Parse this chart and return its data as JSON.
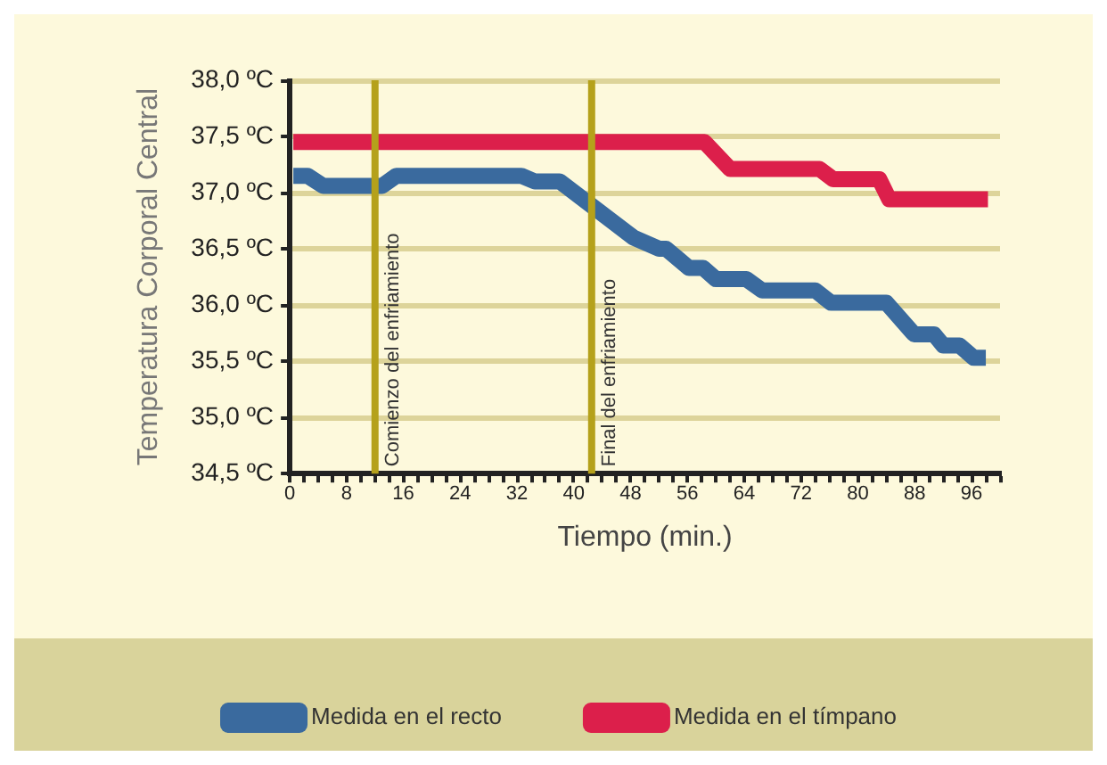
{
  "chart_data": {
    "type": "line",
    "xlabel": "Tiempo (min.)",
    "ylabel": "Temperatura Corporal Central",
    "xlim": [
      0,
      100
    ],
    "ylim": [
      34.5,
      38.0
    ],
    "xticks": [
      0,
      {
        "value": 2,
        "label": null
      },
      {
        "value": 4,
        "label": null
      },
      {
        "value": 6,
        "label": null
      },
      8,
      {
        "value": 10,
        "label": null
      },
      {
        "value": 12,
        "label": null
      },
      {
        "value": 14,
        "label": null
      },
      16,
      {
        "value": 18,
        "label": null
      },
      {
        "value": 20,
        "label": null
      },
      {
        "value": 22,
        "label": null
      },
      24,
      {
        "value": 26,
        "label": null
      },
      {
        "value": 28,
        "label": null
      },
      {
        "value": 30,
        "label": null
      },
      32,
      {
        "value": 34,
        "label": null
      },
      {
        "value": 36,
        "label": null
      },
      {
        "value": 38,
        "label": null
      },
      40,
      {
        "value": 42,
        "label": null
      },
      {
        "value": 44,
        "label": null
      },
      {
        "value": 46,
        "label": null
      },
      48,
      {
        "value": 50,
        "label": null
      },
      {
        "value": 52,
        "label": null
      },
      {
        "value": 54,
        "label": null
      },
      56,
      {
        "value": 58,
        "label": null
      },
      {
        "value": 60,
        "label": null
      },
      {
        "value": 62,
        "label": null
      },
      64,
      {
        "value": 66,
        "label": null
      },
      {
        "value": 68,
        "label": null
      },
      {
        "value": 70,
        "label": null
      },
      72,
      {
        "value": 74,
        "label": null
      },
      {
        "value": 76,
        "label": null
      },
      {
        "value": 78,
        "label": null
      },
      80,
      {
        "value": 82,
        "label": null
      },
      {
        "value": 84,
        "label": null
      },
      {
        "value": 86,
        "label": null
      },
      88,
      {
        "value": 90,
        "label": null
      },
      {
        "value": 92,
        "label": null
      },
      {
        "value": 94,
        "label": null
      },
      96,
      {
        "value": 98,
        "label": null
      },
      {
        "value": 100,
        "label": null
      }
    ],
    "yticks": [
      {
        "value": 34.5,
        "label": "34,5 ºC"
      },
      {
        "value": 35.0,
        "label": "35,0 ºC"
      },
      {
        "value": 35.5,
        "label": "35,5 ºC"
      },
      {
        "value": 36.0,
        "label": "36,0 ºC"
      },
      {
        "value": 36.5,
        "label": "36,5 ºC"
      },
      {
        "value": 37.0,
        "label": "37,0 ºC"
      },
      {
        "value": 37.5,
        "label": "37,5 ºC"
      },
      {
        "value": 38.0,
        "label": "38,0 ºC"
      }
    ],
    "grid": "y",
    "legend": "bottom",
    "marker": "none",
    "line_style": "solid",
    "series": [
      {
        "name": "Medida en el recto",
        "color": "#3a6a9e",
        "x": [
          0.5,
          2.5,
          4.7,
          13,
          15,
          32.6,
          34.5,
          38,
          48.4,
          52,
          53,
          56.2,
          58.2,
          60,
          64.3,
          66.5,
          74,
          76.2,
          84,
          87.9,
          90.7,
          92,
          94.3,
          96.3,
          98
        ],
        "values": [
          37.15,
          37.15,
          37.06,
          37.06,
          37.15,
          37.15,
          37.1,
          37.1,
          36.6,
          36.5,
          36.5,
          36.33,
          36.33,
          36.23,
          36.23,
          36.13,
          36.13,
          36.02,
          36.02,
          35.74,
          35.74,
          35.64,
          35.64,
          35.53,
          35.53
        ]
      },
      {
        "name": "Medida en el tímpano",
        "color": "#dc1f4b",
        "x": [
          0.5,
          58.4,
          62,
          74.6,
          76.5,
          83,
          84.4,
          98.3
        ],
        "values": [
          37.45,
          37.45,
          37.21,
          37.21,
          37.12,
          37.12,
          36.94,
          36.94
        ]
      }
    ],
    "ref_lines": [
      {
        "axis": "x",
        "value": 12,
        "label": "Comienzo del enfriamiento",
        "color": "#b5a11b"
      },
      {
        "axis": "x",
        "value": 42.5,
        "label": "Final del enfriamiento",
        "color": "#b5a11b"
      }
    ]
  }
}
